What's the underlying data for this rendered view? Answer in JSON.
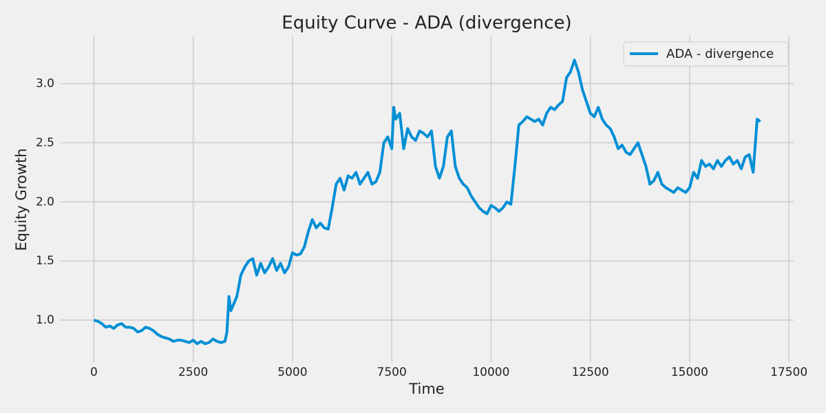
{
  "chart_data": {
    "type": "line",
    "title": "Equity Curve - ADA (divergence)",
    "x_label": "Time",
    "y_label": "Equity Growth",
    "x": [
      0,
      100,
      200,
      300,
      400,
      500,
      600,
      700,
      800,
      900,
      1000,
      1100,
      1200,
      1300,
      1400,
      1500,
      1600,
      1700,
      1800,
      1900,
      2000,
      2100,
      2200,
      2300,
      2400,
      2500,
      2600,
      2700,
      2800,
      2900,
      3000,
      3100,
      3200,
      3300,
      3350,
      3400,
      3450,
      3500,
      3600,
      3700,
      3800,
      3900,
      4000,
      4100,
      4200,
      4300,
      4400,
      4500,
      4600,
      4700,
      4800,
      4900,
      5000,
      5100,
      5200,
      5300,
      5400,
      5500,
      5600,
      5700,
      5800,
      5900,
      6000,
      6100,
      6200,
      6300,
      6400,
      6500,
      6600,
      6700,
      6800,
      6900,
      7000,
      7100,
      7200,
      7300,
      7400,
      7500,
      7550,
      7600,
      7700,
      7800,
      7900,
      8000,
      8100,
      8200,
      8300,
      8400,
      8500,
      8600,
      8700,
      8800,
      8900,
      9000,
      9100,
      9200,
      9300,
      9400,
      9500,
      9600,
      9700,
      9800,
      9900,
      10000,
      10100,
      10200,
      10300,
      10400,
      10500,
      10600,
      10700,
      10800,
      10900,
      11000,
      11100,
      11200,
      11300,
      11400,
      11500,
      11600,
      11700,
      11800,
      11900,
      12000,
      12100,
      12200,
      12300,
      12400,
      12500,
      12600,
      12700,
      12800,
      12900,
      13000,
      13100,
      13200,
      13300,
      13400,
      13500,
      13600,
      13700,
      13800,
      13900,
      14000,
      14100,
      14200,
      14300,
      14400,
      14500,
      14600,
      14700,
      14800,
      14900,
      15000,
      15100,
      15200,
      15300,
      15400,
      15500,
      15600,
      15700,
      15800,
      15900,
      16000,
      16100,
      16200,
      16300,
      16400,
      16500,
      16600,
      16700,
      16780
    ],
    "series": [
      {
        "name": "ADA - divergence",
        "color": "#008fd5",
        "values": [
          1.0,
          0.99,
          0.97,
          0.94,
          0.95,
          0.93,
          0.96,
          0.97,
          0.94,
          0.94,
          0.93,
          0.9,
          0.91,
          0.94,
          0.93,
          0.91,
          0.88,
          0.86,
          0.85,
          0.84,
          0.82,
          0.83,
          0.83,
          0.82,
          0.81,
          0.83,
          0.8,
          0.82,
          0.8,
          0.81,
          0.84,
          0.82,
          0.81,
          0.82,
          0.9,
          1.2,
          1.08,
          1.12,
          1.2,
          1.38,
          1.45,
          1.5,
          1.52,
          1.38,
          1.48,
          1.4,
          1.45,
          1.52,
          1.42,
          1.48,
          1.4,
          1.45,
          1.57,
          1.55,
          1.56,
          1.62,
          1.75,
          1.85,
          1.78,
          1.82,
          1.78,
          1.77,
          1.95,
          2.15,
          2.2,
          2.1,
          2.22,
          2.2,
          2.25,
          2.15,
          2.2,
          2.25,
          2.15,
          2.17,
          2.25,
          2.5,
          2.55,
          2.45,
          2.8,
          2.7,
          2.75,
          2.45,
          2.62,
          2.55,
          2.52,
          2.6,
          2.58,
          2.55,
          2.6,
          2.3,
          2.2,
          2.3,
          2.55,
          2.6,
          2.3,
          2.2,
          2.15,
          2.12,
          2.05,
          2.0,
          1.95,
          1.92,
          1.9,
          1.97,
          1.95,
          1.92,
          1.95,
          2.0,
          1.98,
          2.3,
          2.65,
          2.68,
          2.72,
          2.7,
          2.68,
          2.7,
          2.65,
          2.75,
          2.8,
          2.78,
          2.82,
          2.85,
          3.05,
          3.1,
          3.2,
          3.1,
          2.95,
          2.85,
          2.75,
          2.72,
          2.8,
          2.7,
          2.65,
          2.62,
          2.55,
          2.45,
          2.48,
          2.42,
          2.4,
          2.45,
          2.5,
          2.4,
          2.3,
          2.15,
          2.18,
          2.25,
          2.15,
          2.12,
          2.1,
          2.08,
          2.12,
          2.1,
          2.08,
          2.12,
          2.25,
          2.2,
          2.35,
          2.3,
          2.32,
          2.28,
          2.35,
          2.3,
          2.35,
          2.38,
          2.32,
          2.35,
          2.28,
          2.38,
          2.4,
          2.25,
          2.7,
          2.68
        ]
      }
    ],
    "xlim": [
      -839,
      17619
    ],
    "ylim": [
      0.645,
      3.405
    ],
    "xticks": [
      0,
      2500,
      5000,
      7500,
      10000,
      12500,
      15000,
      17500
    ],
    "yticks": [
      {
        "value": 1.0,
        "label": "1.0"
      },
      1.5,
      {
        "value": 2.0,
        "label": "2.0"
      },
      2.5,
      {
        "value": 3.0,
        "label": "3.0"
      }
    ],
    "grid": true,
    "legend": "upper right"
  }
}
